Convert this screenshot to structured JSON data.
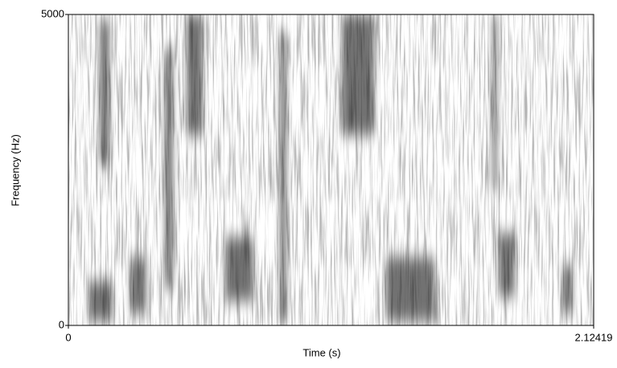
{
  "chart_data": {
    "type": "spectrogram",
    "x_label": "Time (s)",
    "y_label": "Frequency (Hz)",
    "xlim": [
      0,
      2.12419
    ],
    "xticks": [
      0,
      2.12419
    ],
    "ylim": [
      0,
      5000
    ],
    "yticks": [
      0,
      5000
    ]
  }
}
